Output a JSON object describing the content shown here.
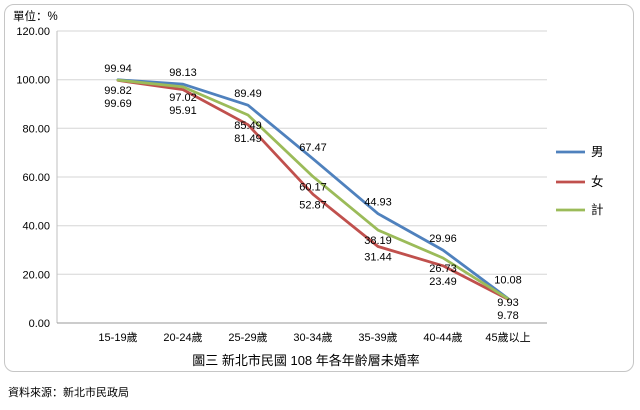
{
  "chart_data": {
    "type": "line",
    "title": "圖三 新北市民國 108 年各年齡層未婚率",
    "unit_label": "單位：%",
    "source": "資料來源：新北市民政局",
    "categories": [
      "15-19歲",
      "20-24歲",
      "25-29歲",
      "30-34歲",
      "35-39歲",
      "40-44歲",
      "45歲以上"
    ],
    "series": [
      {
        "name": "男",
        "color": "#4F81BD",
        "values": [
          99.94,
          98.13,
          89.49,
          67.47,
          44.93,
          29.96,
          10.08
        ]
      },
      {
        "name": "女",
        "color": "#C0504D",
        "values": [
          99.69,
          95.91,
          81.49,
          52.87,
          31.44,
          23.49,
          9.78
        ]
      },
      {
        "name": "計",
        "color": "#9BBB59",
        "values": [
          99.82,
          97.02,
          85.49,
          60.17,
          38.19,
          26.73,
          9.93
        ]
      }
    ],
    "ylim": [
      0,
      120
    ],
    "y_ticks": [
      {
        "value": 0,
        "label": "0.00"
      },
      {
        "value": 20,
        "label": "20.00"
      },
      {
        "value": 40,
        "label": "40.00"
      },
      {
        "value": 60,
        "label": "60.00"
      },
      {
        "value": 80,
        "label": "80.00"
      },
      {
        "value": 100,
        "label": "100.00"
      },
      {
        "value": 120,
        "label": "120.00"
      }
    ],
    "grid": true,
    "legend_position": "right"
  }
}
